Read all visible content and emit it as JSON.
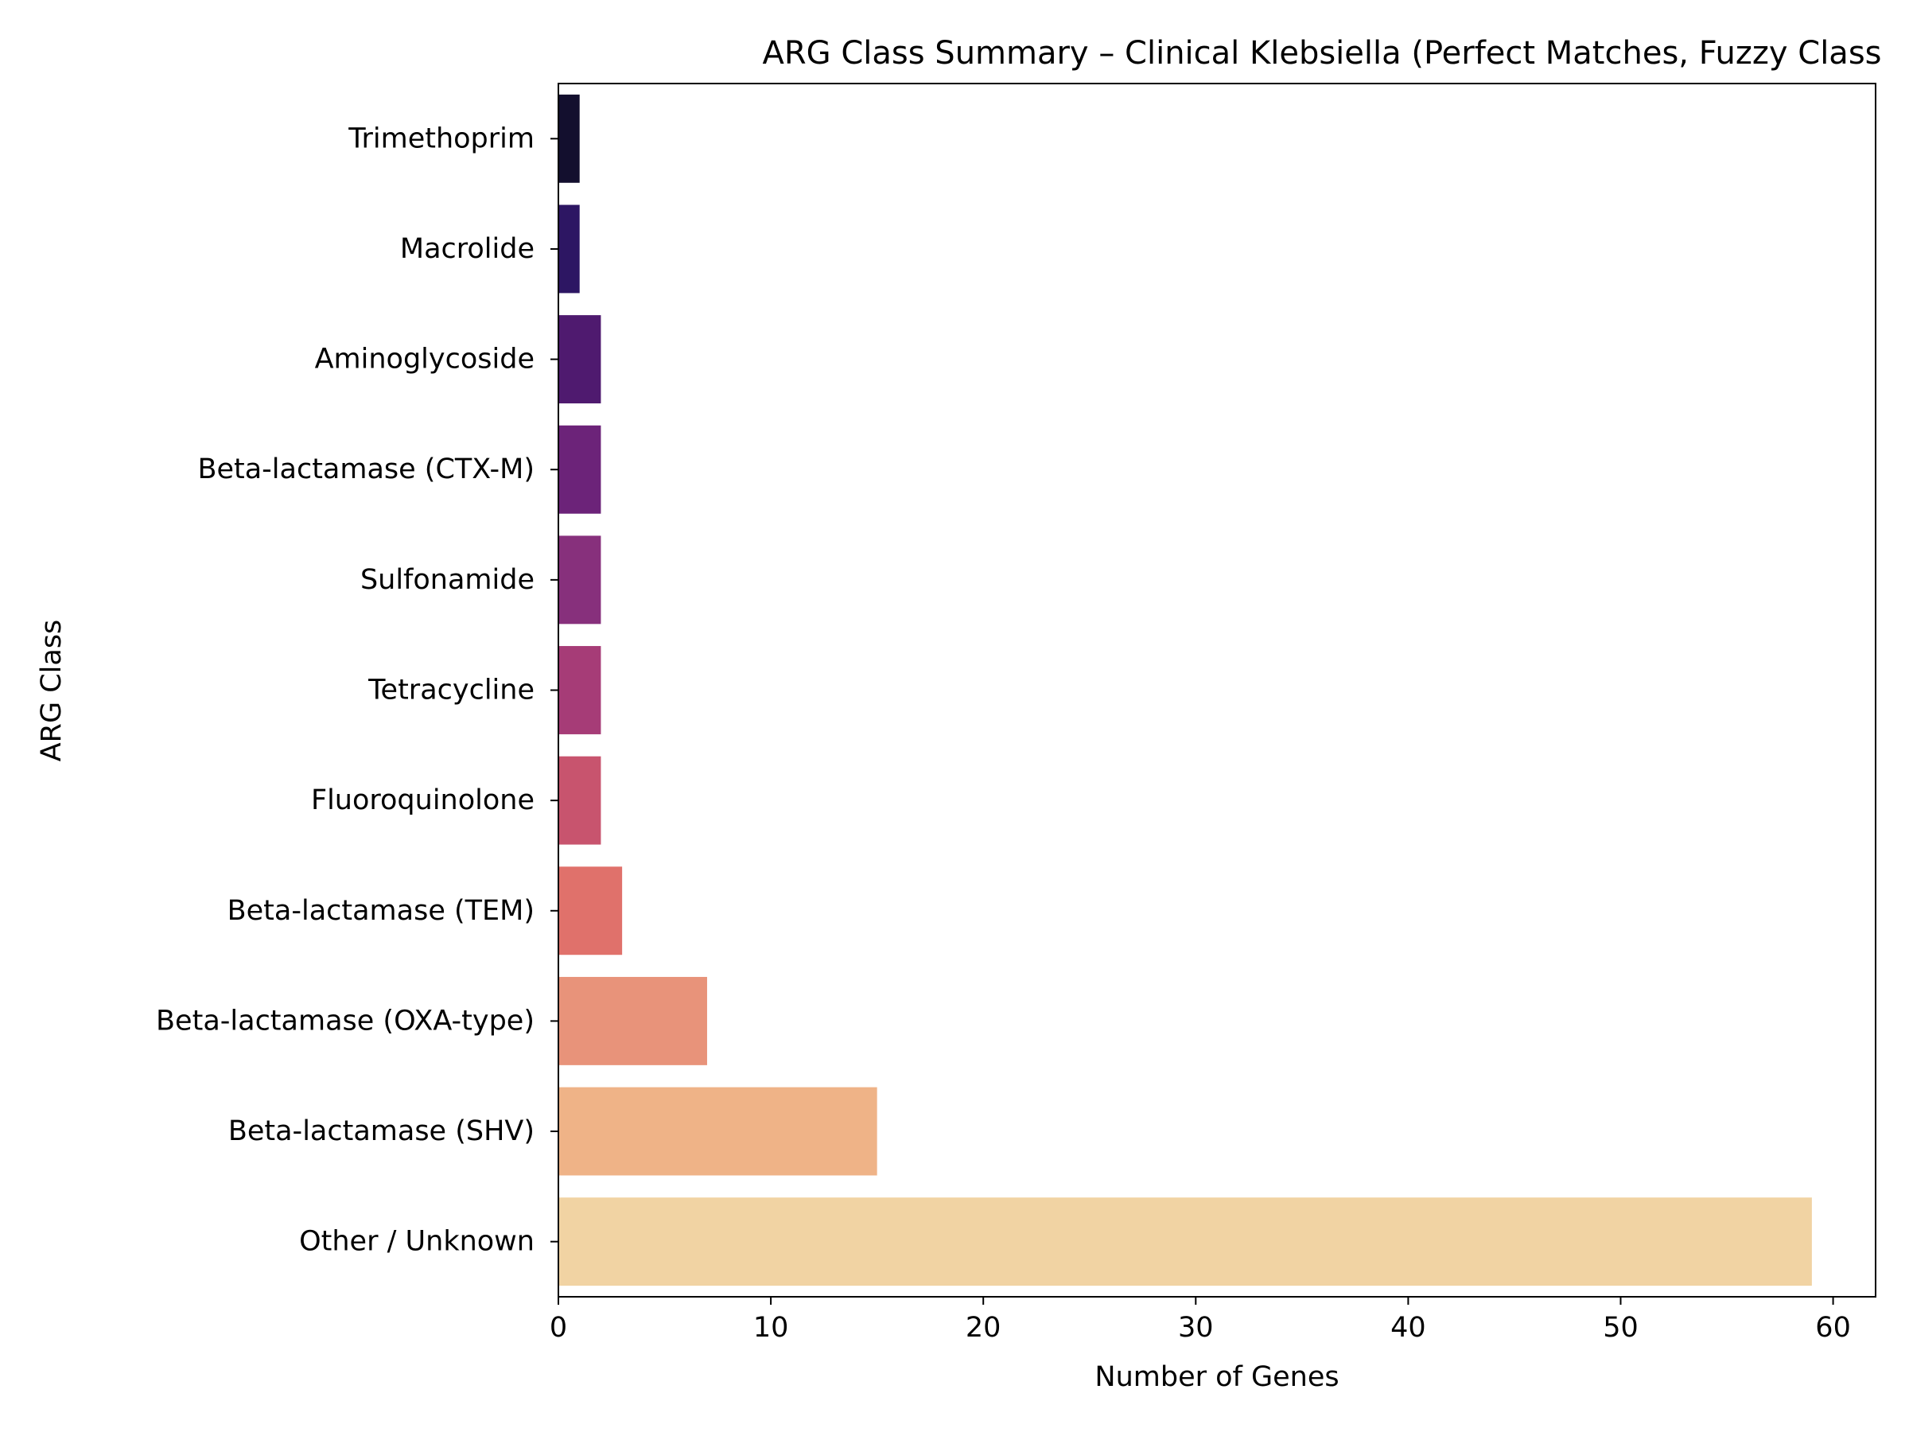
{
  "chart_data": {
    "type": "bar",
    "orientation": "horizontal",
    "title": "ARG Class Summary – Clinical Klebsiella (Perfect Matches, Fuzzy Class",
    "xlabel": "Number of Genes",
    "ylabel": "ARG Class",
    "xlim": [
      0,
      62
    ],
    "xticks": [
      0,
      10,
      20,
      30,
      40,
      50,
      60
    ],
    "grid": false,
    "categories": [
      "Trimethoprim",
      "Macrolide",
      "Aminoglycoside",
      "Beta-lactamase (CTX-M)",
      "Sulfonamide",
      "Tetracycline",
      "Fluoroquinolone",
      "Beta-lactamase (TEM)",
      "Beta-lactamase (OXA-type)",
      "Beta-lactamase (SHV)",
      "Other / Unknown"
    ],
    "values": [
      1,
      1,
      2,
      2,
      2,
      2,
      2,
      3,
      7,
      15,
      59
    ],
    "colors": [
      "#130f2e",
      "#2d1663",
      "#4f1a6f",
      "#6c2379",
      "#87307c",
      "#a63c77",
      "#c8546e",
      "#e0716b",
      "#e8937a",
      "#efb387",
      "#f1d3a3"
    ]
  }
}
